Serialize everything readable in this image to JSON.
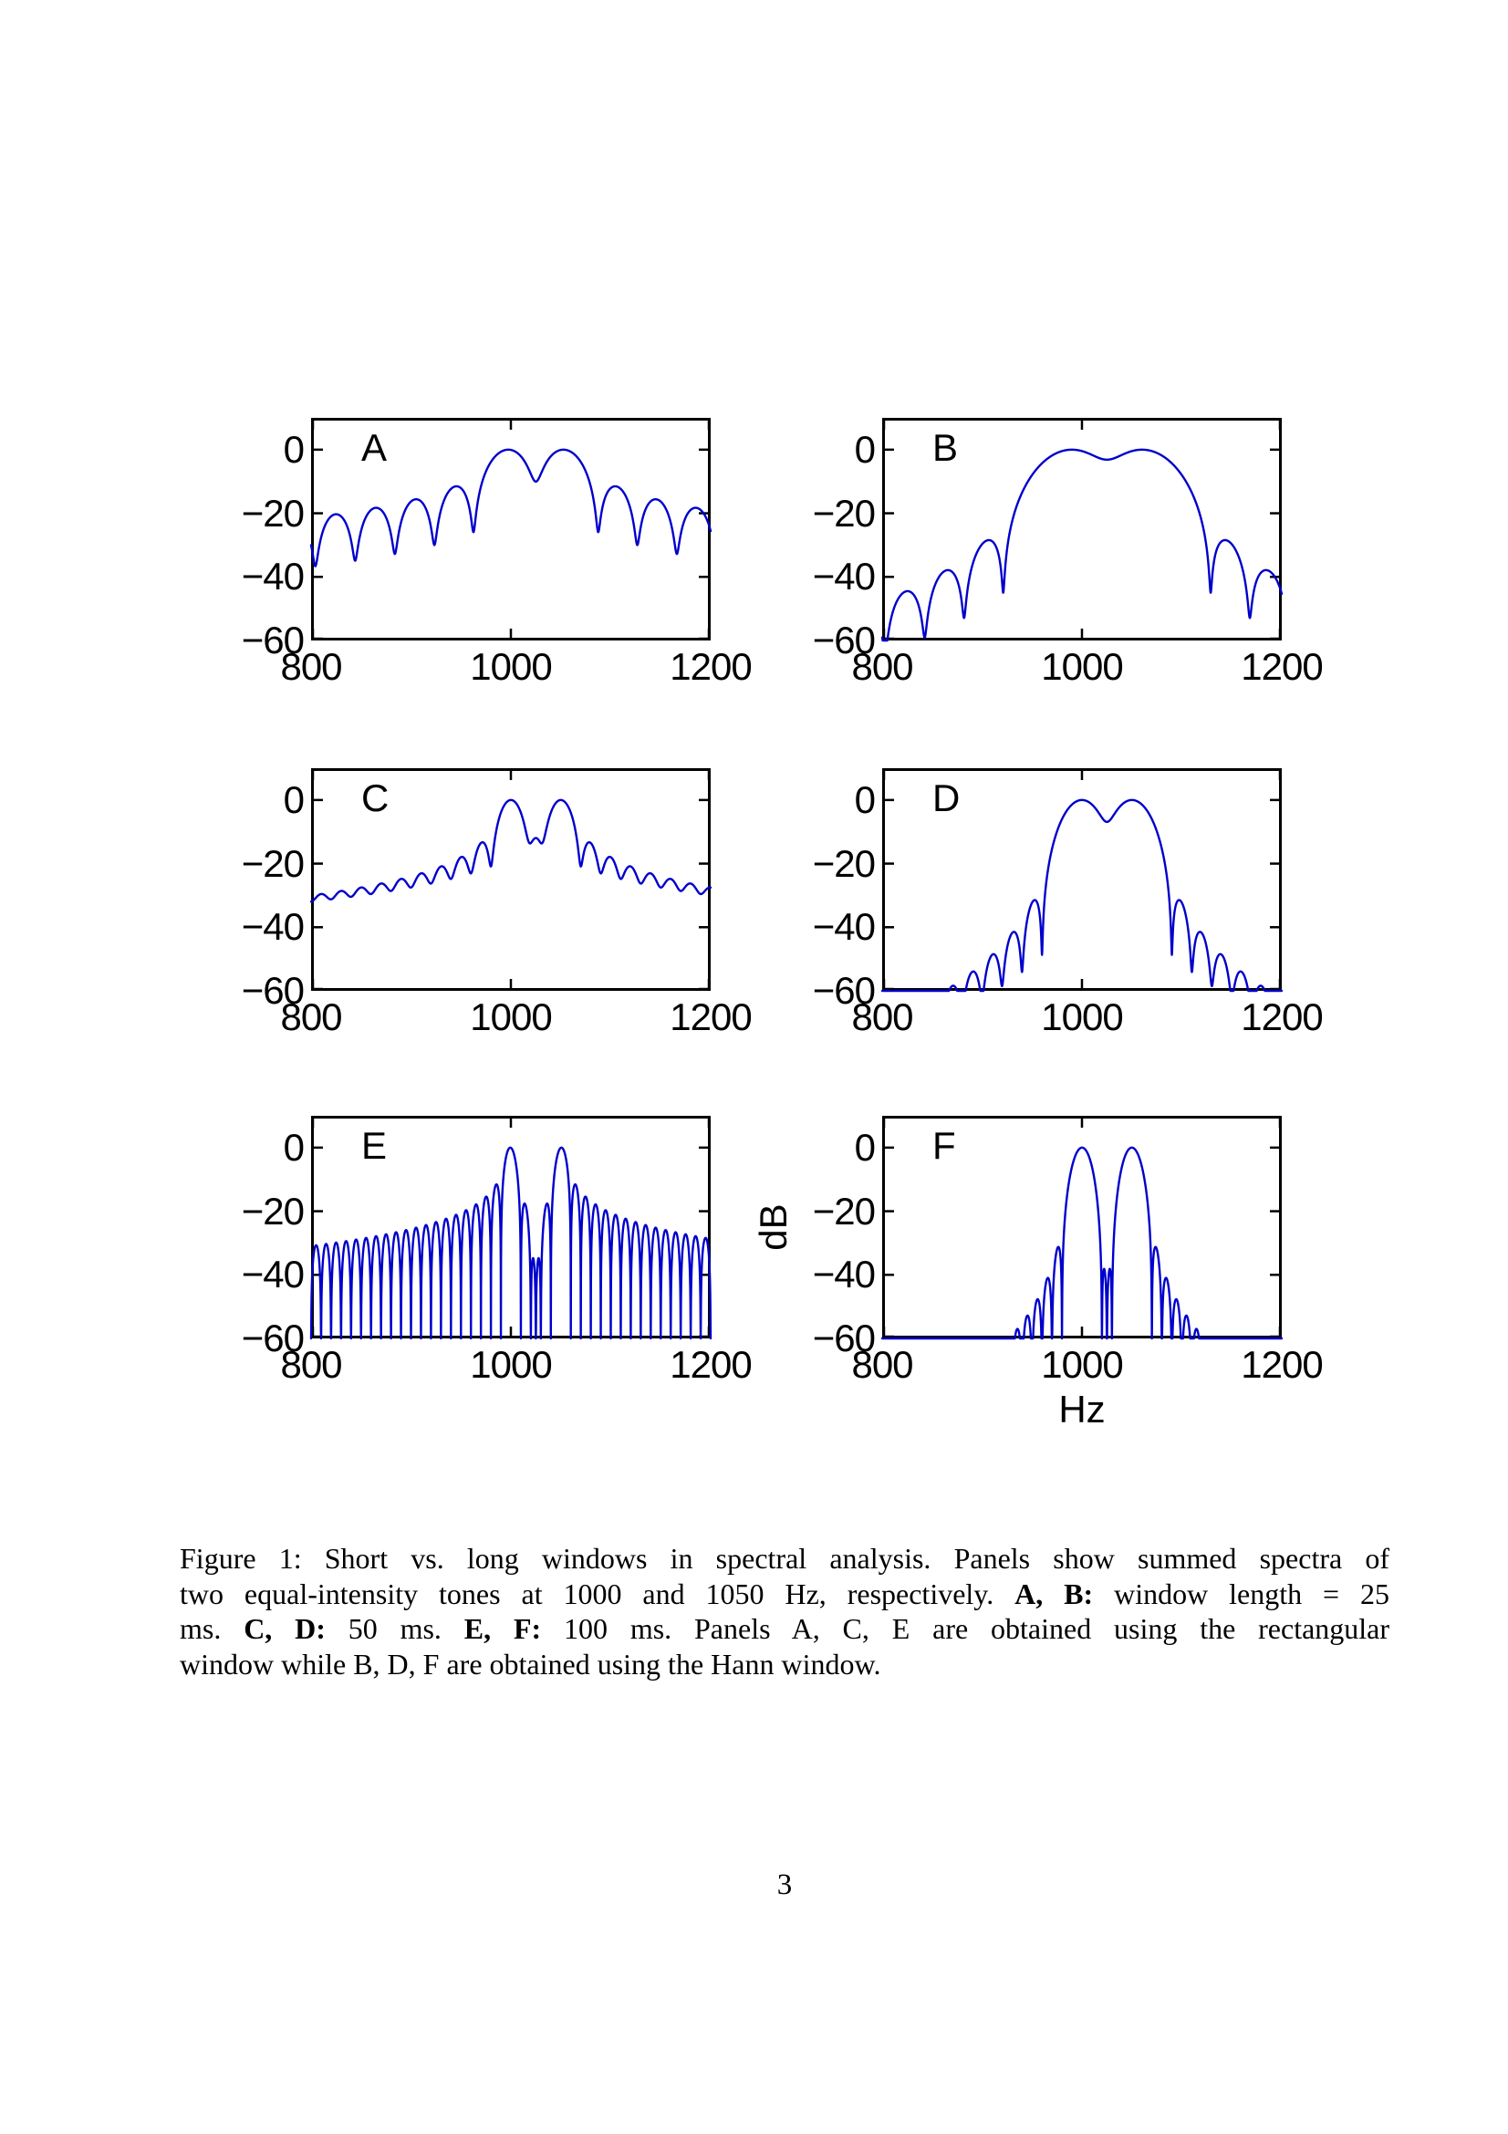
{
  "page": {
    "number": "3"
  },
  "figure": {
    "caption_lines": [
      {
        "justify": true,
        "segments": [
          {
            "t": "Figure 1: Short vs. long windows in spectral analysis. Panels show summed spectra of",
            "b": false
          }
        ]
      },
      {
        "justify": true,
        "segments": [
          {
            "t": "two equal-intensity tones at 1000 and 1050 Hz, respectively. ",
            "b": false
          },
          {
            "t": "A, B:",
            "b": true
          },
          {
            "t": " window length = 25",
            "b": false
          }
        ]
      },
      {
        "justify": true,
        "segments": [
          {
            "t": "ms. ",
            "b": false
          },
          {
            "t": "C, D:",
            "b": true
          },
          {
            "t": " 50 ms. ",
            "b": false
          },
          {
            "t": "E, F:",
            "b": true
          },
          {
            "t": " 100 ms. Panels A, C, E are obtained using the rectangular",
            "b": false
          }
        ]
      },
      {
        "justify": false,
        "segments": [
          {
            "t": "window while B, D, F are obtained using the Hann window.",
            "b": false
          }
        ]
      }
    ]
  },
  "chart_data": {
    "type": "line",
    "tones_hz": [
      1000,
      1050
    ],
    "xlim": [
      800,
      1200
    ],
    "ylim": [
      -60,
      10
    ],
    "xticks": [
      800,
      1000,
      1200
    ],
    "yticks": [
      0,
      -20,
      -40,
      -60
    ],
    "xtick_labels": [
      "800",
      "1000",
      "1200"
    ],
    "ytick_labels": [
      "0",
      "−20",
      "−40",
      "−60"
    ],
    "xlabel": "Hz",
    "ylabel": "dB",
    "line_color": "#0000cc",
    "panels": [
      {
        "label": "A",
        "window": "rectangular",
        "window_length_ms": 25
      },
      {
        "label": "B",
        "window": "hann",
        "window_length_ms": 25
      },
      {
        "label": "C",
        "window": "rectangular",
        "window_length_ms": 50
      },
      {
        "label": "D",
        "window": "hann",
        "window_length_ms": 50
      },
      {
        "label": "E",
        "window": "rectangular",
        "window_length_ms": 100
      },
      {
        "label": "F",
        "window": "hann",
        "window_length_ms": 100
      }
    ]
  }
}
